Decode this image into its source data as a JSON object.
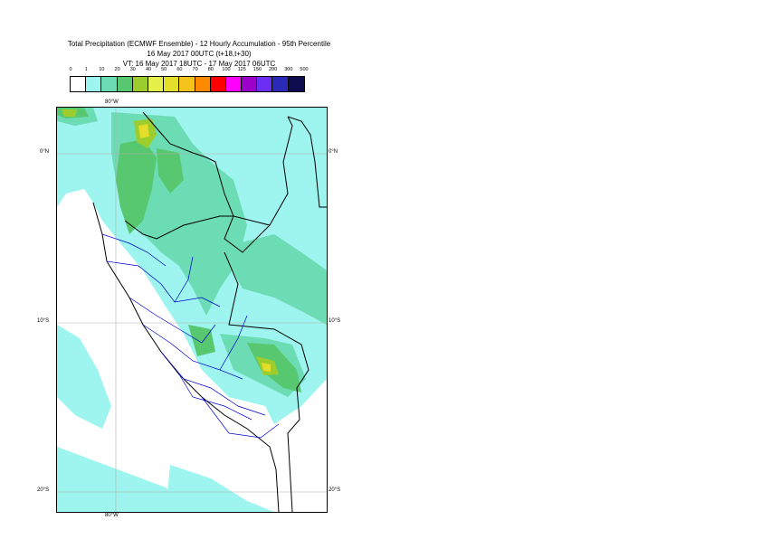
{
  "title": {
    "line1": "Total Precipitation (ECMWF Ensemble) - 12 Hourly Accumulation - 95th Percentile",
    "line2": "16 May 2017 00UTC (t+18,t+30)",
    "line3": "VT: 16 May 2017 18UTC - 17 May 2017 06UTC"
  },
  "legend": {
    "labels": [
      "0",
      "1",
      "10",
      "20",
      "30",
      "40",
      "50",
      "60",
      "70",
      "80",
      "100",
      "125",
      "150",
      "200",
      "300",
      "500"
    ],
    "colors": [
      "#ffffff",
      "#9ef4ee",
      "#6cdcb4",
      "#58c870",
      "#9ccd2c",
      "#e6f04a",
      "#e2de2a",
      "#f4c41c",
      "#ff8a00",
      "#ff0000",
      "#ff00ff",
      "#9c00c8",
      "#6b2ef2",
      "#2a2ab6",
      "#0c0c4e"
    ]
  },
  "axes": {
    "lon_top": "80°W",
    "lon_bottom": "80°W",
    "lat_0_left": "0°N",
    "lat_0_right": "0°N",
    "lat_10_left": "10°S",
    "lat_10_right": "10°S",
    "lat_20_left": "20°S",
    "lat_20_right": "20°S"
  }
}
